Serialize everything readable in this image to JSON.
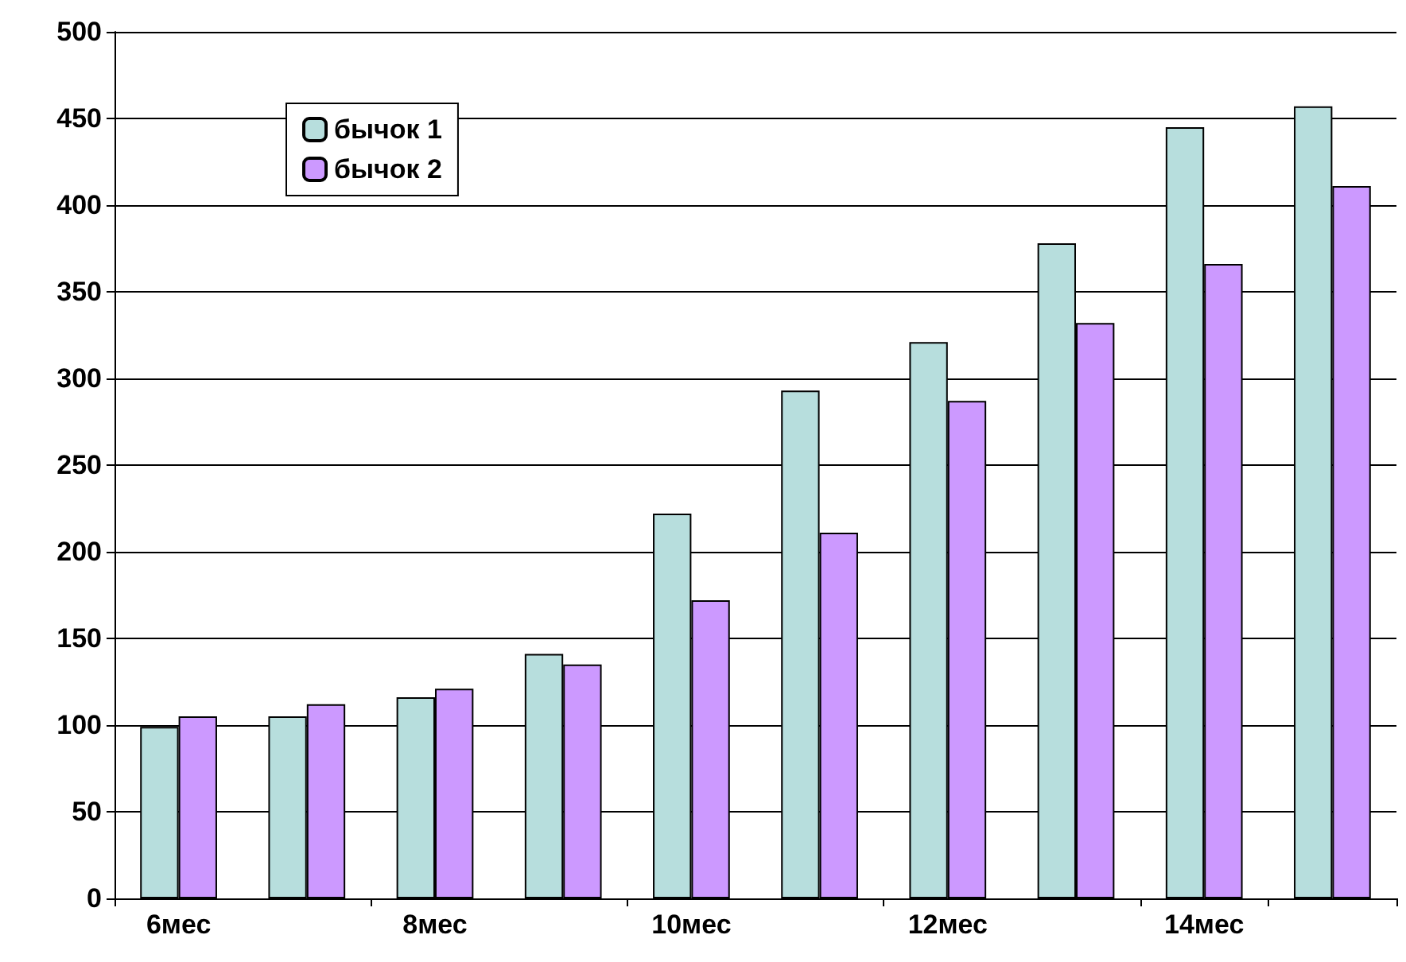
{
  "chart_data": {
    "type": "bar",
    "categories": [
      "6мес",
      null,
      "8мес",
      null,
      "10мес",
      null,
      "12мес",
      null,
      "14мес",
      null
    ],
    "series": [
      {
        "name": "бычок 1",
        "color": "#b7dedd",
        "values": [
          99,
          105,
          116,
          141,
          222,
          293,
          321,
          378,
          445,
          457
        ]
      },
      {
        "name": "бычок 2",
        "color": "#cc99ff",
        "values": [
          105,
          112,
          121,
          135,
          172,
          211,
          287,
          332,
          366,
          411
        ]
      }
    ],
    "ylim": [
      0,
      500
    ],
    "yticks": [
      0,
      50,
      100,
      150,
      200,
      250,
      300,
      350,
      400,
      450,
      500
    ],
    "grid": "y",
    "legend": "top left"
  }
}
